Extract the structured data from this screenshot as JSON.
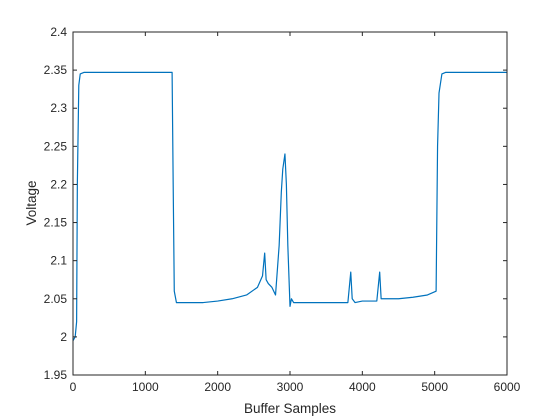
{
  "chart_data": {
    "type": "line",
    "title": "",
    "xlabel": "Buffer Samples",
    "ylabel": "Voltage",
    "xlim": [
      0,
      6000
    ],
    "ylim": [
      1.95,
      2.4
    ],
    "x_ticks": [
      "0",
      "1000",
      "2000",
      "3000",
      "4000",
      "5000",
      "6000"
    ],
    "y_ticks": [
      "1.95",
      "2",
      "2.05",
      "2.1",
      "2.15",
      "2.2",
      "2.25",
      "2.3",
      "2.35",
      "2.4"
    ],
    "grid": false,
    "legend": "none",
    "series": [
      {
        "color": "#0072BD",
        "x": [
          0,
          30,
          50,
          60,
          80,
          100,
          150,
          200,
          400,
          600,
          800,
          1000,
          1200,
          1370,
          1385,
          1400,
          1430,
          1460,
          1500,
          1600,
          1800,
          2000,
          2200,
          2400,
          2550,
          2620,
          2650,
          2670,
          2700,
          2750,
          2800,
          2850,
          2880,
          2900,
          2930,
          2950,
          2970,
          3000,
          3020,
          3050,
          3100,
          3300,
          3500,
          3700,
          3800,
          3840,
          3860,
          3900,
          4000,
          4200,
          4240,
          4260,
          4300,
          4500,
          4700,
          4900,
          5020,
          5040,
          5060,
          5100,
          5150,
          5200,
          5400,
          5600,
          5800,
          6000
        ],
        "y": [
          1.995,
          2.0,
          2.02,
          2.2,
          2.33,
          2.345,
          2.347,
          2.347,
          2.347,
          2.347,
          2.347,
          2.347,
          2.347,
          2.347,
          2.2,
          2.06,
          2.045,
          2.045,
          2.045,
          2.045,
          2.045,
          2.047,
          2.05,
          2.055,
          2.065,
          2.08,
          2.11,
          2.075,
          2.07,
          2.065,
          2.055,
          2.12,
          2.19,
          2.22,
          2.24,
          2.2,
          2.12,
          2.04,
          2.05,
          2.045,
          2.045,
          2.045,
          2.045,
          2.045,
          2.045,
          2.085,
          2.05,
          2.045,
          2.047,
          2.047,
          2.085,
          2.05,
          2.05,
          2.05,
          2.052,
          2.055,
          2.06,
          2.25,
          2.32,
          2.345,
          2.347,
          2.347,
          2.347,
          2.347,
          2.347,
          2.347
        ]
      }
    ]
  }
}
